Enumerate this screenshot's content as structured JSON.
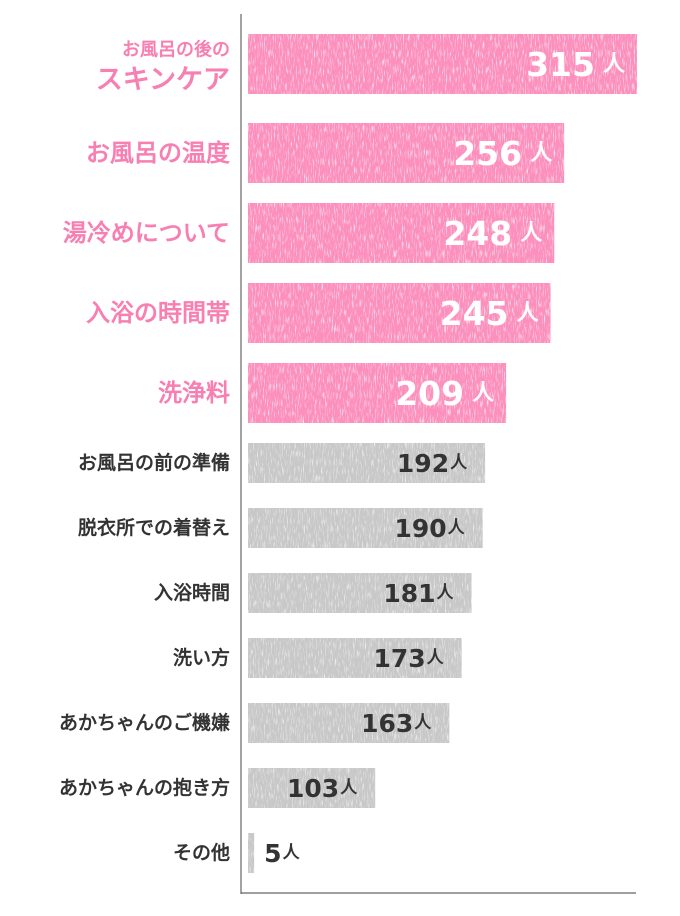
{
  "chart_data": {
    "type": "bar",
    "orientation": "horizontal",
    "categories": [
      "お風呂の後のスキンケア",
      "お風呂の温度",
      "湯冷めについて",
      "入浴の時間帯",
      "洗浄料",
      "お風呂の前の準備",
      "脱衣所での着替え",
      "入浴時間",
      "洗い方",
      "あかちゃんのご機嫌",
      "あかちゃんの抱き方",
      "その他"
    ],
    "category_lines": [
      [
        "お風呂の後の",
        "スキンケア"
      ],
      [
        "お風呂の温度"
      ],
      [
        "湯冷めについて"
      ],
      [
        "入浴の時間帯"
      ],
      [
        "洗浄料"
      ],
      [
        "お風呂の前の準備"
      ],
      [
        "脱衣所での着替え"
      ],
      [
        "入浴時間"
      ],
      [
        "洗い方"
      ],
      [
        "あかちゃんのご機嫌"
      ],
      [
        "あかちゃんの抱き方"
      ],
      [
        "その他"
      ]
    ],
    "values": [
      315,
      256,
      248,
      245,
      209,
      192,
      190,
      181,
      173,
      163,
      103,
      5
    ],
    "unit": "人",
    "highlighted": [
      true,
      true,
      true,
      true,
      true,
      false,
      false,
      false,
      false,
      false,
      false,
      false
    ],
    "xlim": [
      0,
      315
    ],
    "grid": false,
    "colors": {
      "highlight_bar": "#fc8fbd",
      "highlight_label": "#f77fb2",
      "normal_bar": "#c8c8c8",
      "normal_label": "#333333",
      "highlight_value": "#ffffff",
      "normal_value": "#333333",
      "axis": "#666666"
    }
  }
}
